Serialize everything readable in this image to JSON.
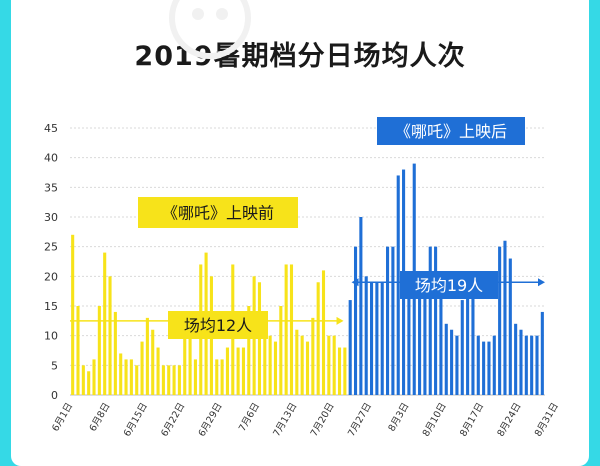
{
  "chart_data": {
    "type": "bar",
    "title": "2019暑期档分日场均人次",
    "ylim": [
      0,
      45
    ],
    "yticks": [
      0,
      5,
      10,
      15,
      20,
      25,
      30,
      35,
      40,
      45
    ],
    "xticks": [
      "6月1日",
      "6月8日",
      "6月15日",
      "6月22日",
      "6月29日",
      "7月6日",
      "7月13日",
      "7月20日",
      "7月27日",
      "8月3日",
      "8月10日",
      "8月17日",
      "8月24日",
      "8月31日"
    ],
    "grid": true,
    "series": [
      {
        "name": "《哪吒》上映前",
        "color": "#f7e31a",
        "values": [
          27,
          15,
          5,
          4,
          6,
          15,
          24,
          20,
          14,
          7,
          6,
          6,
          5,
          9,
          13,
          11,
          8,
          5,
          5,
          5,
          5,
          10,
          11,
          6,
          22,
          24,
          20,
          6,
          6,
          8,
          22,
          8,
          8,
          15,
          20,
          19,
          11,
          10,
          9,
          15,
          22,
          22,
          11,
          10,
          9,
          13,
          19,
          21,
          10,
          10,
          8,
          8
        ]
      },
      {
        "name": "《哪吒》上映后",
        "color": "#1f6fd6",
        "values": [
          16,
          25,
          30,
          20,
          19,
          19,
          19,
          25,
          25,
          37,
          38,
          20,
          39,
          20,
          20,
          25,
          25,
          20,
          12,
          11,
          10,
          16,
          20,
          18,
          10,
          9,
          9,
          10,
          25,
          26,
          23,
          12,
          11,
          10,
          10,
          10,
          14
        ]
      }
    ],
    "annotations": [
      {
        "text": "《哪吒》上映前",
        "color": "#f7e31a"
      },
      {
        "text": "场均12人",
        "color": "#f7e31a"
      },
      {
        "text": "《哪吒》上映后",
        "color": "#1f6fd6"
      },
      {
        "text": "场均19人",
        "color": "#1f6fd6"
      }
    ]
  }
}
